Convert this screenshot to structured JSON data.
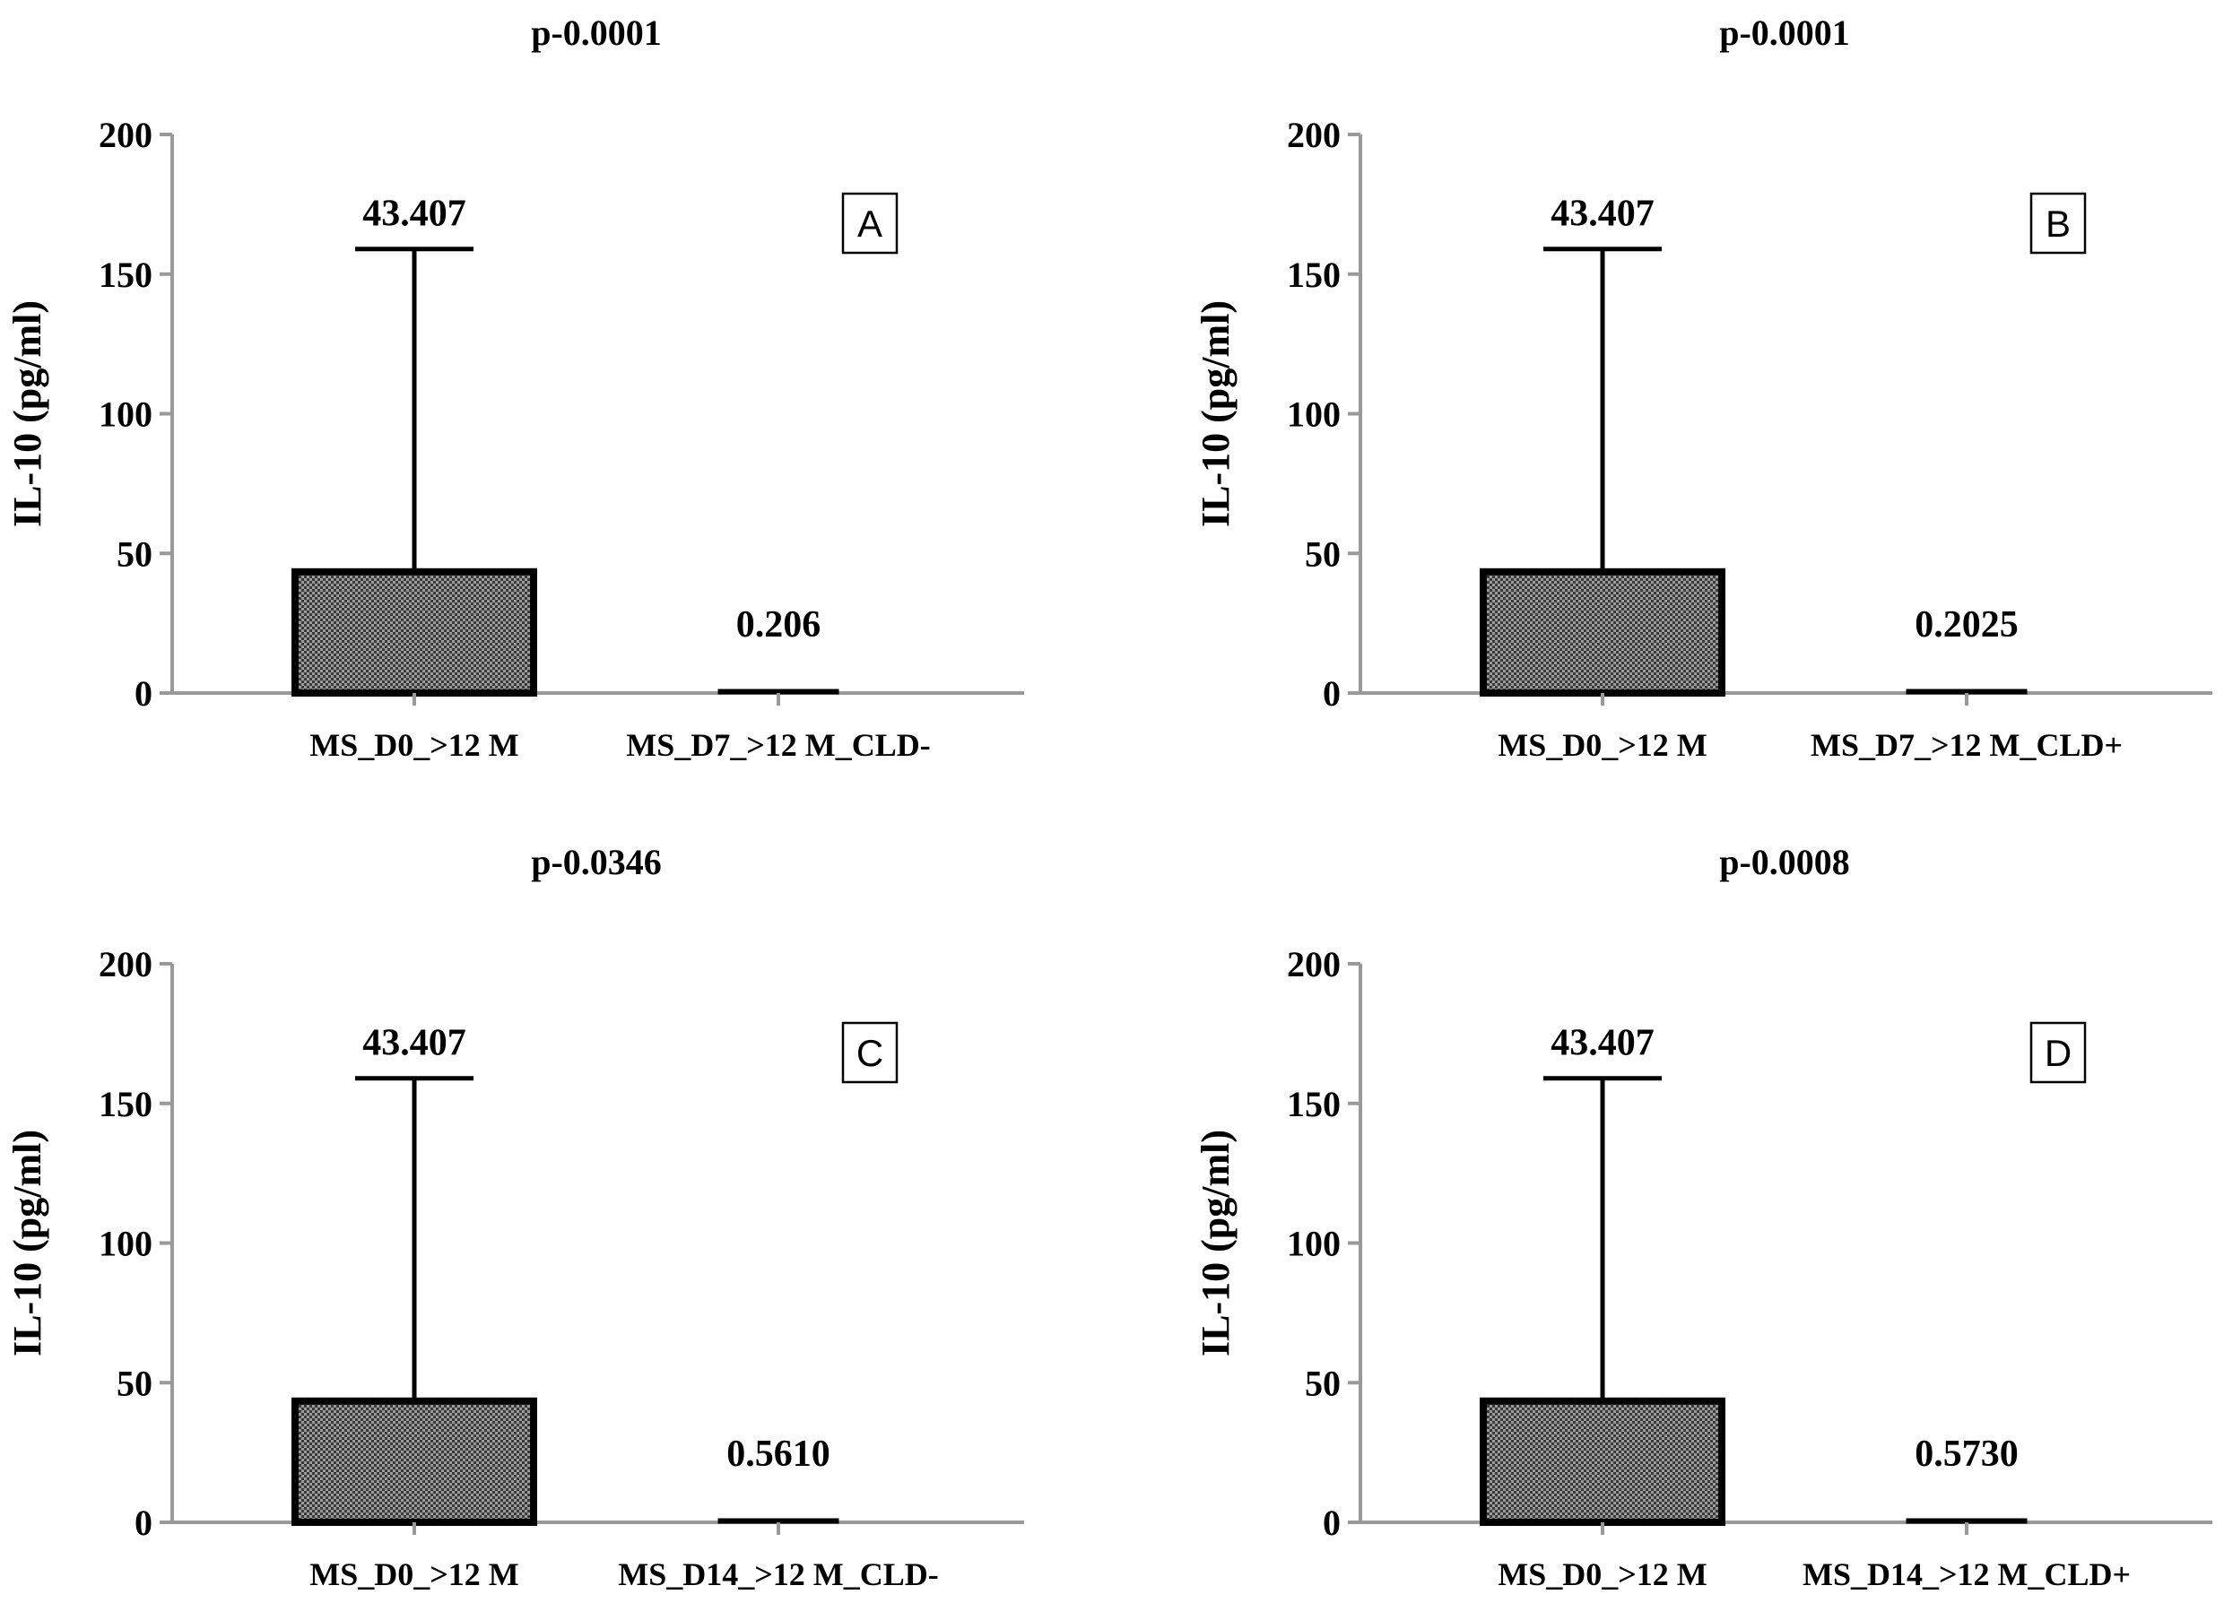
{
  "chart_data": [
    {
      "type": "bar",
      "panel": "A",
      "title": "p-0.0001",
      "ylabel": "IL-10  (pg/ml)",
      "xlabel": "",
      "ylim": [
        0,
        200
      ],
      "yticks": [
        0,
        50,
        100,
        150,
        200
      ],
      "categories": [
        "MS_D0_>12 M",
        "MS_D7_>12 M_CLD-"
      ],
      "values": [
        43.407,
        0.206
      ],
      "value_labels": [
        "43.407",
        "0.206"
      ],
      "error_upper": [
        159,
        null
      ]
    },
    {
      "type": "bar",
      "panel": "B",
      "title": "p-0.0001",
      "ylabel": "IL-10  (pg/ml)",
      "xlabel": "",
      "ylim": [
        0,
        200
      ],
      "yticks": [
        0,
        50,
        100,
        150,
        200
      ],
      "categories": [
        "MS_D0_>12 M",
        "MS_D7_>12 M_CLD+"
      ],
      "values": [
        43.407,
        0.2025
      ],
      "value_labels": [
        "43.407",
        "0.2025"
      ],
      "error_upper": [
        159,
        null
      ]
    },
    {
      "type": "bar",
      "panel": "C",
      "title": "p-0.0346",
      "ylabel": "IL-10  (pg/ml)",
      "xlabel": "",
      "ylim": [
        0,
        200
      ],
      "yticks": [
        0,
        50,
        100,
        150,
        200
      ],
      "categories": [
        "MS_D0_>12 M",
        "MS_D14_>12 M_CLD-"
      ],
      "values": [
        43.407,
        0.561
      ],
      "value_labels": [
        "43.407",
        "0.5610"
      ],
      "error_upper": [
        159,
        null
      ]
    },
    {
      "type": "bar",
      "panel": "D",
      "title": "p-0.0008",
      "ylabel": "IL-10  (pg/ml)",
      "xlabel": "",
      "ylim": [
        0,
        200
      ],
      "yticks": [
        0,
        50,
        100,
        150,
        200
      ],
      "categories": [
        "MS_D0_>12 M",
        "MS_D14_>12 M_CLD+"
      ],
      "values": [
        43.407,
        0.573
      ],
      "value_labels": [
        "43.407",
        "0.5730"
      ],
      "error_upper": [
        159,
        null
      ]
    }
  ],
  "colors": {
    "axis": "#999999",
    "bar_stroke": "#000000",
    "bar_fill_dark": "#2b2b2b",
    "bar_fill_light": "#bdbdbd",
    "text": "#000000"
  }
}
